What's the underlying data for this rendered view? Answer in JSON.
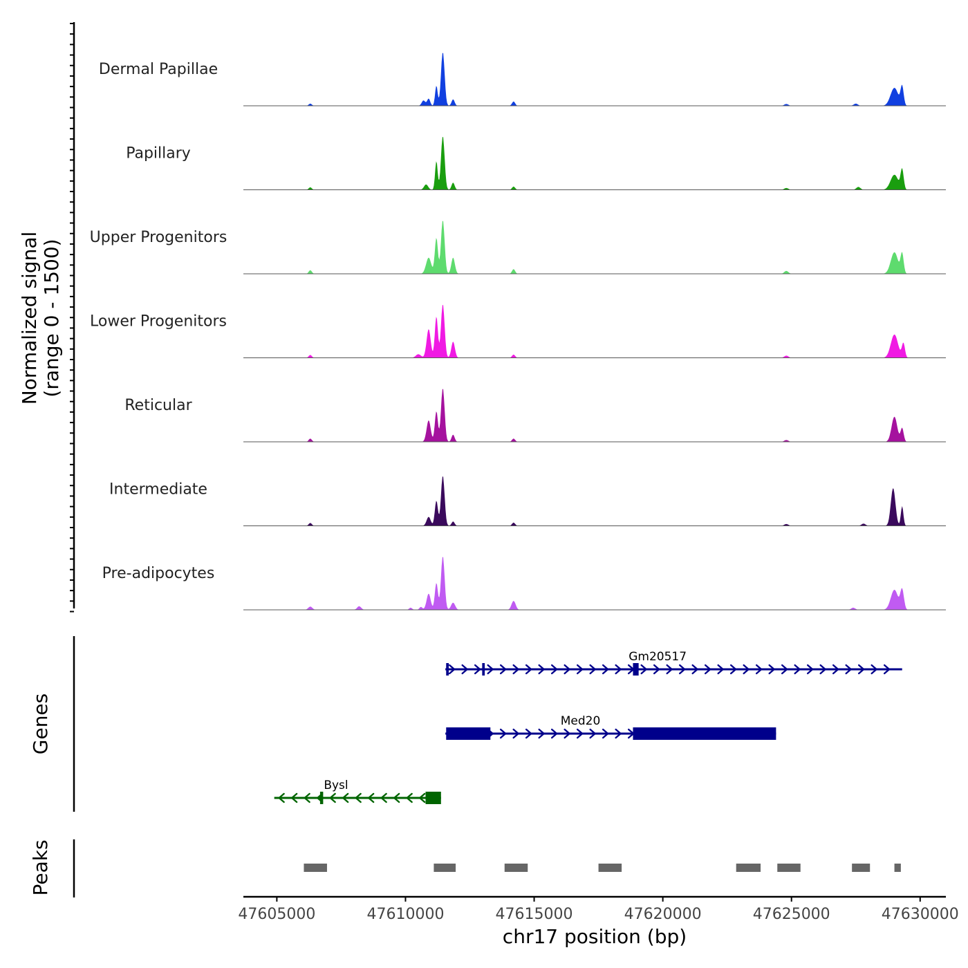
{
  "chart_data": {
    "type": "area",
    "title": "",
    "y_axis_label": [
      "Normalized signal",
      "(range 0 - 1500)"
    ],
    "ylim": [
      0,
      1500
    ],
    "x_axis_label": "chr17 position (bp)",
    "xlim": [
      47603700,
      47631000
    ],
    "x_ticks": [
      47605000,
      47610000,
      47615000,
      47620000,
      47625000,
      47630000
    ],
    "x_tick_labels": [
      "47605000",
      "47610000",
      "47615000",
      "47620000",
      "47625000",
      "47630000"
    ],
    "coverage_tracks": [
      {
        "name": "Dermal Papillae",
        "color": "#1140E0",
        "peaks": [
          [
            47606300,
            60,
            60
          ],
          [
            47610700,
            150,
            70
          ],
          [
            47610900,
            200,
            60
          ],
          [
            47611200,
            560,
            50
          ],
          [
            47611450,
            1500,
            70
          ],
          [
            47611850,
            180,
            60
          ],
          [
            47614200,
            120,
            60
          ],
          [
            47624800,
            50,
            80
          ],
          [
            47627500,
            60,
            80
          ],
          [
            47629000,
            500,
            150
          ],
          [
            47629300,
            520,
            60
          ]
        ]
      },
      {
        "name": "Papillary",
        "color": "#1A9E0F",
        "peaks": [
          [
            47606300,
            70,
            60
          ],
          [
            47610800,
            150,
            80
          ],
          [
            47611200,
            800,
            50
          ],
          [
            47611450,
            1500,
            70
          ],
          [
            47611850,
            200,
            60
          ],
          [
            47614200,
            90,
            60
          ],
          [
            47624800,
            50,
            80
          ],
          [
            47627600,
            80,
            80
          ],
          [
            47629000,
            420,
            150
          ],
          [
            47629300,
            550,
            60
          ]
        ]
      },
      {
        "name": "Upper Progenitors",
        "color": "#5EDB6E",
        "peaks": [
          [
            47606300,
            100,
            60
          ],
          [
            47610900,
            450,
            100
          ],
          [
            47611200,
            1000,
            60
          ],
          [
            47611450,
            1500,
            70
          ],
          [
            47611850,
            450,
            70
          ],
          [
            47614200,
            130,
            60
          ],
          [
            47624800,
            80,
            80
          ],
          [
            47629000,
            600,
            140
          ],
          [
            47629300,
            550,
            60
          ]
        ]
      },
      {
        "name": "Lower Progenitors",
        "color": "#F01AE3",
        "peaks": [
          [
            47606300,
            80,
            60
          ],
          [
            47610500,
            100,
            100
          ],
          [
            47610900,
            800,
            80
          ],
          [
            47611200,
            1150,
            60
          ],
          [
            47611450,
            1500,
            70
          ],
          [
            47611850,
            450,
            70
          ],
          [
            47614200,
            90,
            60
          ],
          [
            47624800,
            60,
            80
          ],
          [
            47629000,
            650,
            140
          ],
          [
            47629350,
            400,
            60
          ]
        ]
      },
      {
        "name": "Reticular",
        "color": "#A5129E",
        "peaks": [
          [
            47606300,
            90,
            60
          ],
          [
            47610900,
            600,
            80
          ],
          [
            47611200,
            850,
            60
          ],
          [
            47611450,
            1500,
            70
          ],
          [
            47611850,
            200,
            60
          ],
          [
            47614200,
            90,
            60
          ],
          [
            47624800,
            50,
            80
          ],
          [
            47629000,
            700,
            110
          ],
          [
            47629300,
            380,
            60
          ]
        ]
      },
      {
        "name": "Intermediate",
        "color": "#3A0A5C",
        "peaks": [
          [
            47606300,
            80,
            60
          ],
          [
            47610900,
            250,
            80
          ],
          [
            47611200,
            700,
            60
          ],
          [
            47611450,
            1400,
            70
          ],
          [
            47611850,
            120,
            60
          ],
          [
            47614200,
            90,
            60
          ],
          [
            47624800,
            50,
            80
          ],
          [
            47627800,
            60,
            80
          ],
          [
            47628950,
            1050,
            90
          ],
          [
            47629300,
            550,
            50
          ]
        ]
      },
      {
        "name": "Pre-adipocytes",
        "color": "#C05BF2",
        "peaks": [
          [
            47606300,
            90,
            80
          ],
          [
            47608200,
            100,
            80
          ],
          [
            47610200,
            60,
            60
          ],
          [
            47610600,
            80,
            60
          ],
          [
            47610900,
            450,
            80
          ],
          [
            47611200,
            750,
            60
          ],
          [
            47611450,
            1500,
            70
          ],
          [
            47611850,
            200,
            80
          ],
          [
            47614200,
            250,
            80
          ],
          [
            47627400,
            60,
            80
          ],
          [
            47629000,
            560,
            140
          ],
          [
            47629300,
            550,
            70
          ]
        ]
      }
    ],
    "genes_label": "Genes",
    "genes": [
      {
        "name": "Gm20517",
        "strand": "+",
        "color": "#00008B",
        "start": 47611550,
        "end": 47629300,
        "exons": [
          [
            47611580,
            47611680
          ],
          [
            47612980,
            47613080
          ],
          [
            47618840,
            47619060
          ]
        ]
      },
      {
        "name": "Med20",
        "strand": "+",
        "color": "#00008B",
        "start": 47611550,
        "end": 47624400,
        "exons": [
          [
            47611580,
            47613300
          ],
          [
            47618840,
            47624400
          ]
        ]
      },
      {
        "name": "Bysl",
        "strand": "-",
        "color": "#006400",
        "start": 47604900,
        "end": 47611380,
        "exons": [
          [
            47606680,
            47606800
          ],
          [
            47610780,
            47611380
          ]
        ]
      }
    ],
    "peaks_label": "Peaks",
    "peak_regions": [
      [
        47606050,
        47606950
      ],
      [
        47611100,
        47611950
      ],
      [
        47613850,
        47614750
      ],
      [
        47617500,
        47618400
      ],
      [
        47622850,
        47623800
      ],
      [
        47624450,
        47625350
      ],
      [
        47627350,
        47628050
      ],
      [
        47629000,
        47629250
      ]
    ]
  }
}
